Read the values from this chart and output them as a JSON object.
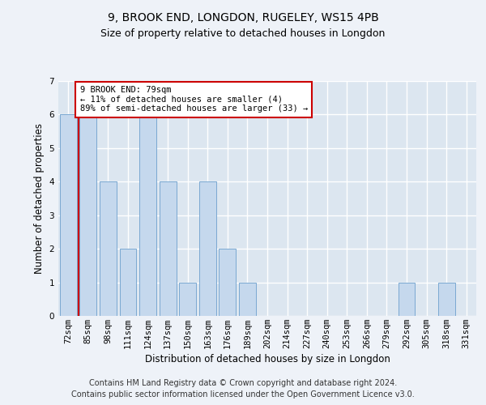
{
  "title": "9, BROOK END, LONGDON, RUGELEY, WS15 4PB",
  "subtitle": "Size of property relative to detached houses in Longdon",
  "xlabel": "Distribution of detached houses by size in Longdon",
  "ylabel": "Number of detached properties",
  "categories": [
    "72sqm",
    "85sqm",
    "98sqm",
    "111sqm",
    "124sqm",
    "137sqm",
    "150sqm",
    "163sqm",
    "176sqm",
    "189sqm",
    "202sqm",
    "214sqm",
    "227sqm",
    "240sqm",
    "253sqm",
    "266sqm",
    "279sqm",
    "292sqm",
    "305sqm",
    "318sqm",
    "331sqm"
  ],
  "values": [
    6,
    6,
    4,
    2,
    6,
    4,
    1,
    4,
    2,
    1,
    0,
    0,
    0,
    0,
    0,
    0,
    0,
    1,
    0,
    1,
    0
  ],
  "bar_color": "#c5d8ed",
  "bar_edge_color": "#7aa8d2",
  "highlight_line_color": "#cc0000",
  "annotation_text": "9 BROOK END: 79sqm\n← 11% of detached houses are smaller (4)\n89% of semi-detached houses are larger (33) →",
  "annotation_box_color": "#ffffff",
  "annotation_box_edge": "#cc0000",
  "ylim": [
    0,
    7
  ],
  "yticks": [
    0,
    1,
    2,
    3,
    4,
    5,
    6,
    7
  ],
  "footer_line1": "Contains HM Land Registry data © Crown copyright and database right 2024.",
  "footer_line2": "Contains public sector information licensed under the Open Government Licence v3.0.",
  "bg_color": "#eef2f8",
  "plot_bg_color": "#dce6f0",
  "grid_color": "#ffffff",
  "title_fontsize": 10,
  "subtitle_fontsize": 9,
  "axis_label_fontsize": 8.5,
  "tick_fontsize": 7.5,
  "footer_fontsize": 7
}
